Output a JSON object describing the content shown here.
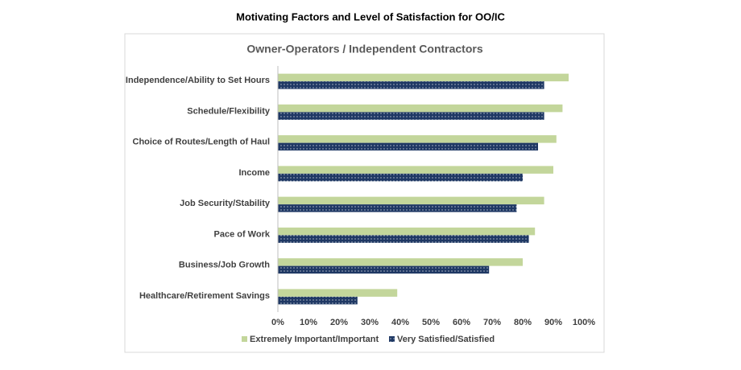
{
  "header": {
    "title": "Motivating Factors and Level of Satisfaction for OO/IC"
  },
  "chart_data": {
    "type": "bar",
    "orientation": "horizontal",
    "title": "Owner-Operators / Independent Contractors",
    "categories": [
      "Independence/Ability to Set Hours",
      "Schedule/Flexibility",
      "Choice of Routes/Length of Haul",
      "Income",
      "Job Security/Stability",
      "Pace of Work",
      "Business/Job Growth",
      "Healthcare/Retirement Savings"
    ],
    "series": [
      {
        "name": "Extremely Important/Important",
        "color": "#c3d69b",
        "values": [
          95,
          93,
          91,
          90,
          87,
          84,
          80,
          39
        ]
      },
      {
        "name": "Very Satisfied/Satisfied",
        "color": "#1f3864",
        "pattern": "dots",
        "values": [
          87,
          87,
          85,
          80,
          78,
          82,
          69,
          26
        ]
      }
    ],
    "xlim": [
      0,
      100
    ],
    "xticks": [
      {
        "value": 0,
        "label": "0%"
      },
      {
        "value": 10,
        "label": "10%"
      },
      {
        "value": 20,
        "label": "20%"
      },
      {
        "value": 30,
        "label": "30%"
      },
      {
        "value": 40,
        "label": "40%"
      },
      {
        "value": 50,
        "label": "50%"
      },
      {
        "value": 60,
        "label": "60%"
      },
      {
        "value": 70,
        "label": "70%"
      },
      {
        "value": 80,
        "label": "80%"
      },
      {
        "value": 90,
        "label": "90%"
      },
      {
        "value": 100,
        "label": "100%"
      }
    ],
    "grid": false,
    "legend": "bottom"
  }
}
